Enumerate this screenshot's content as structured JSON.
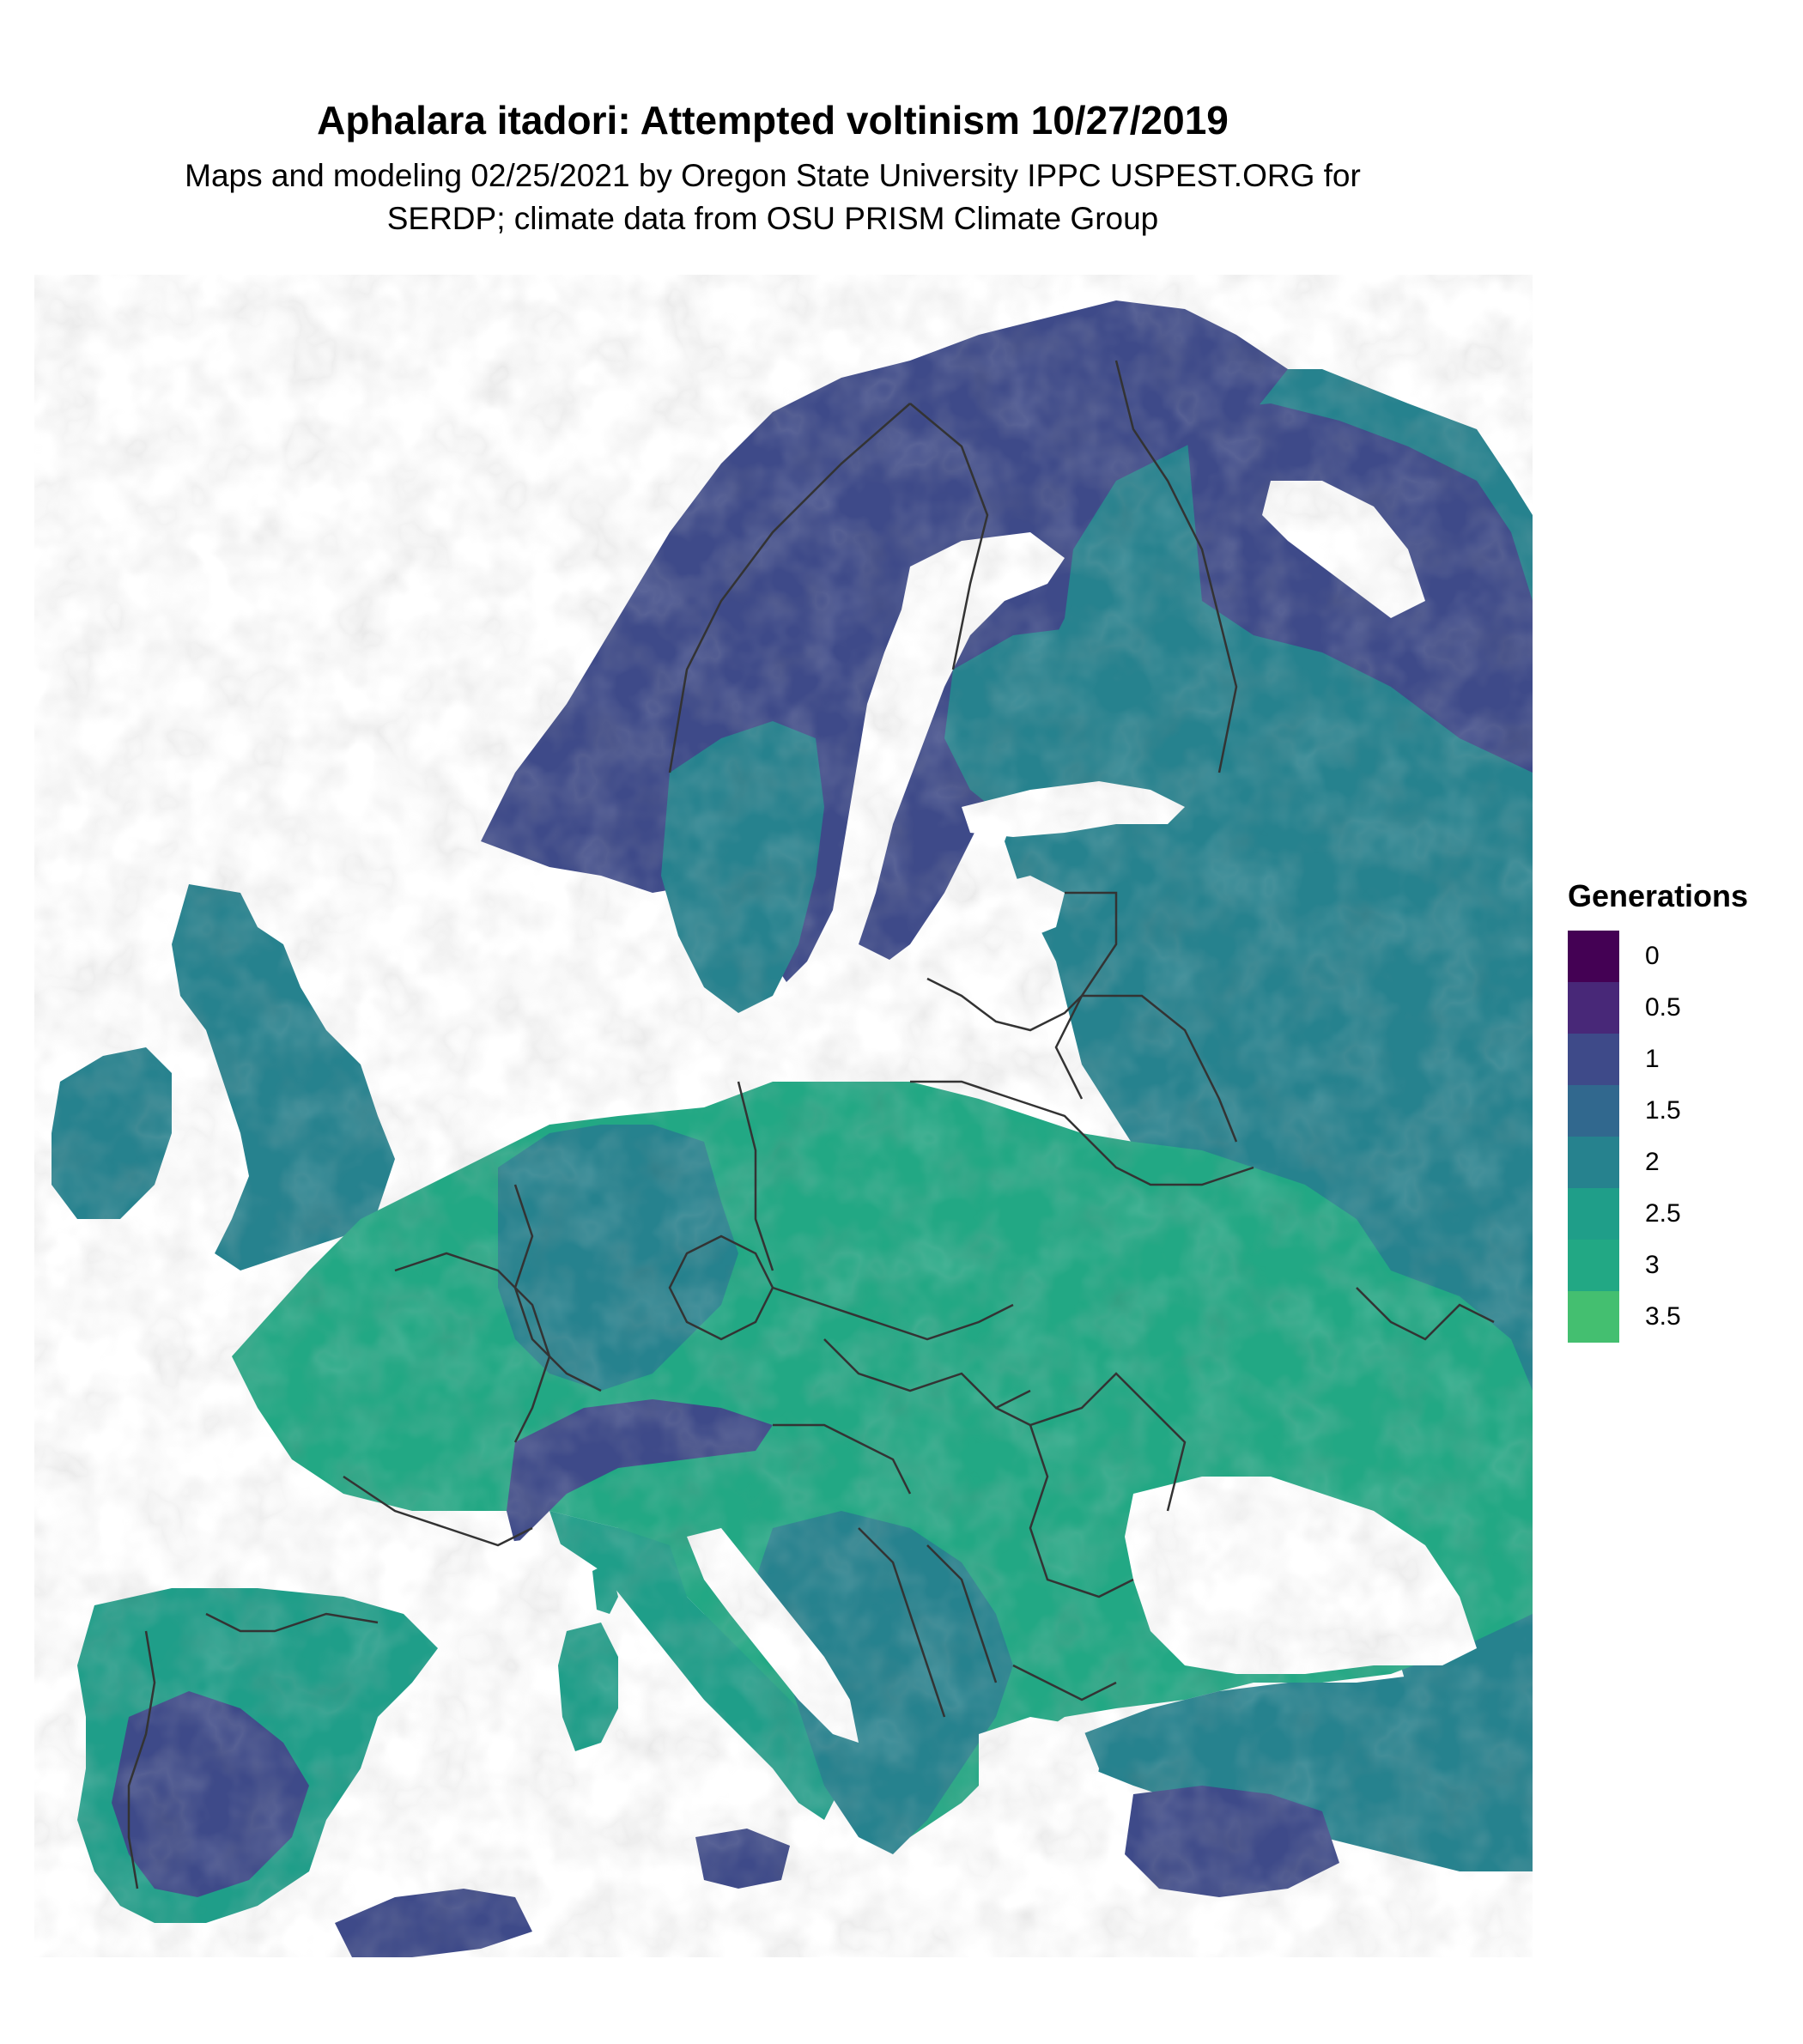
{
  "map": {
    "title": "Aphalara itadori: Attempted voltinism 10/27/2019",
    "subtitle_line1": "Maps and modeling 02/25/2021 by Oregon State University IPPC USPEST.ORG for",
    "subtitle_line2": "SERDP; climate data from OSU PRISM Climate Group",
    "colors": {
      "background": "#ffffff",
      "water": "#ffffff",
      "border": "#333333"
    }
  },
  "legend": {
    "title": "Generations",
    "items": [
      {
        "label": "0",
        "color": "#440154"
      },
      {
        "label": "0.5",
        "color": "#482878"
      },
      {
        "label": "1",
        "color": "#3e4a89"
      },
      {
        "label": "1.5",
        "color": "#31688e"
      },
      {
        "label": "2",
        "color": "#26828e"
      },
      {
        "label": "2.5",
        "color": "#1f9e89"
      },
      {
        "label": "3",
        "color": "#22a884"
      },
      {
        "label": "3.5",
        "color": "#44bf70"
      }
    ]
  }
}
